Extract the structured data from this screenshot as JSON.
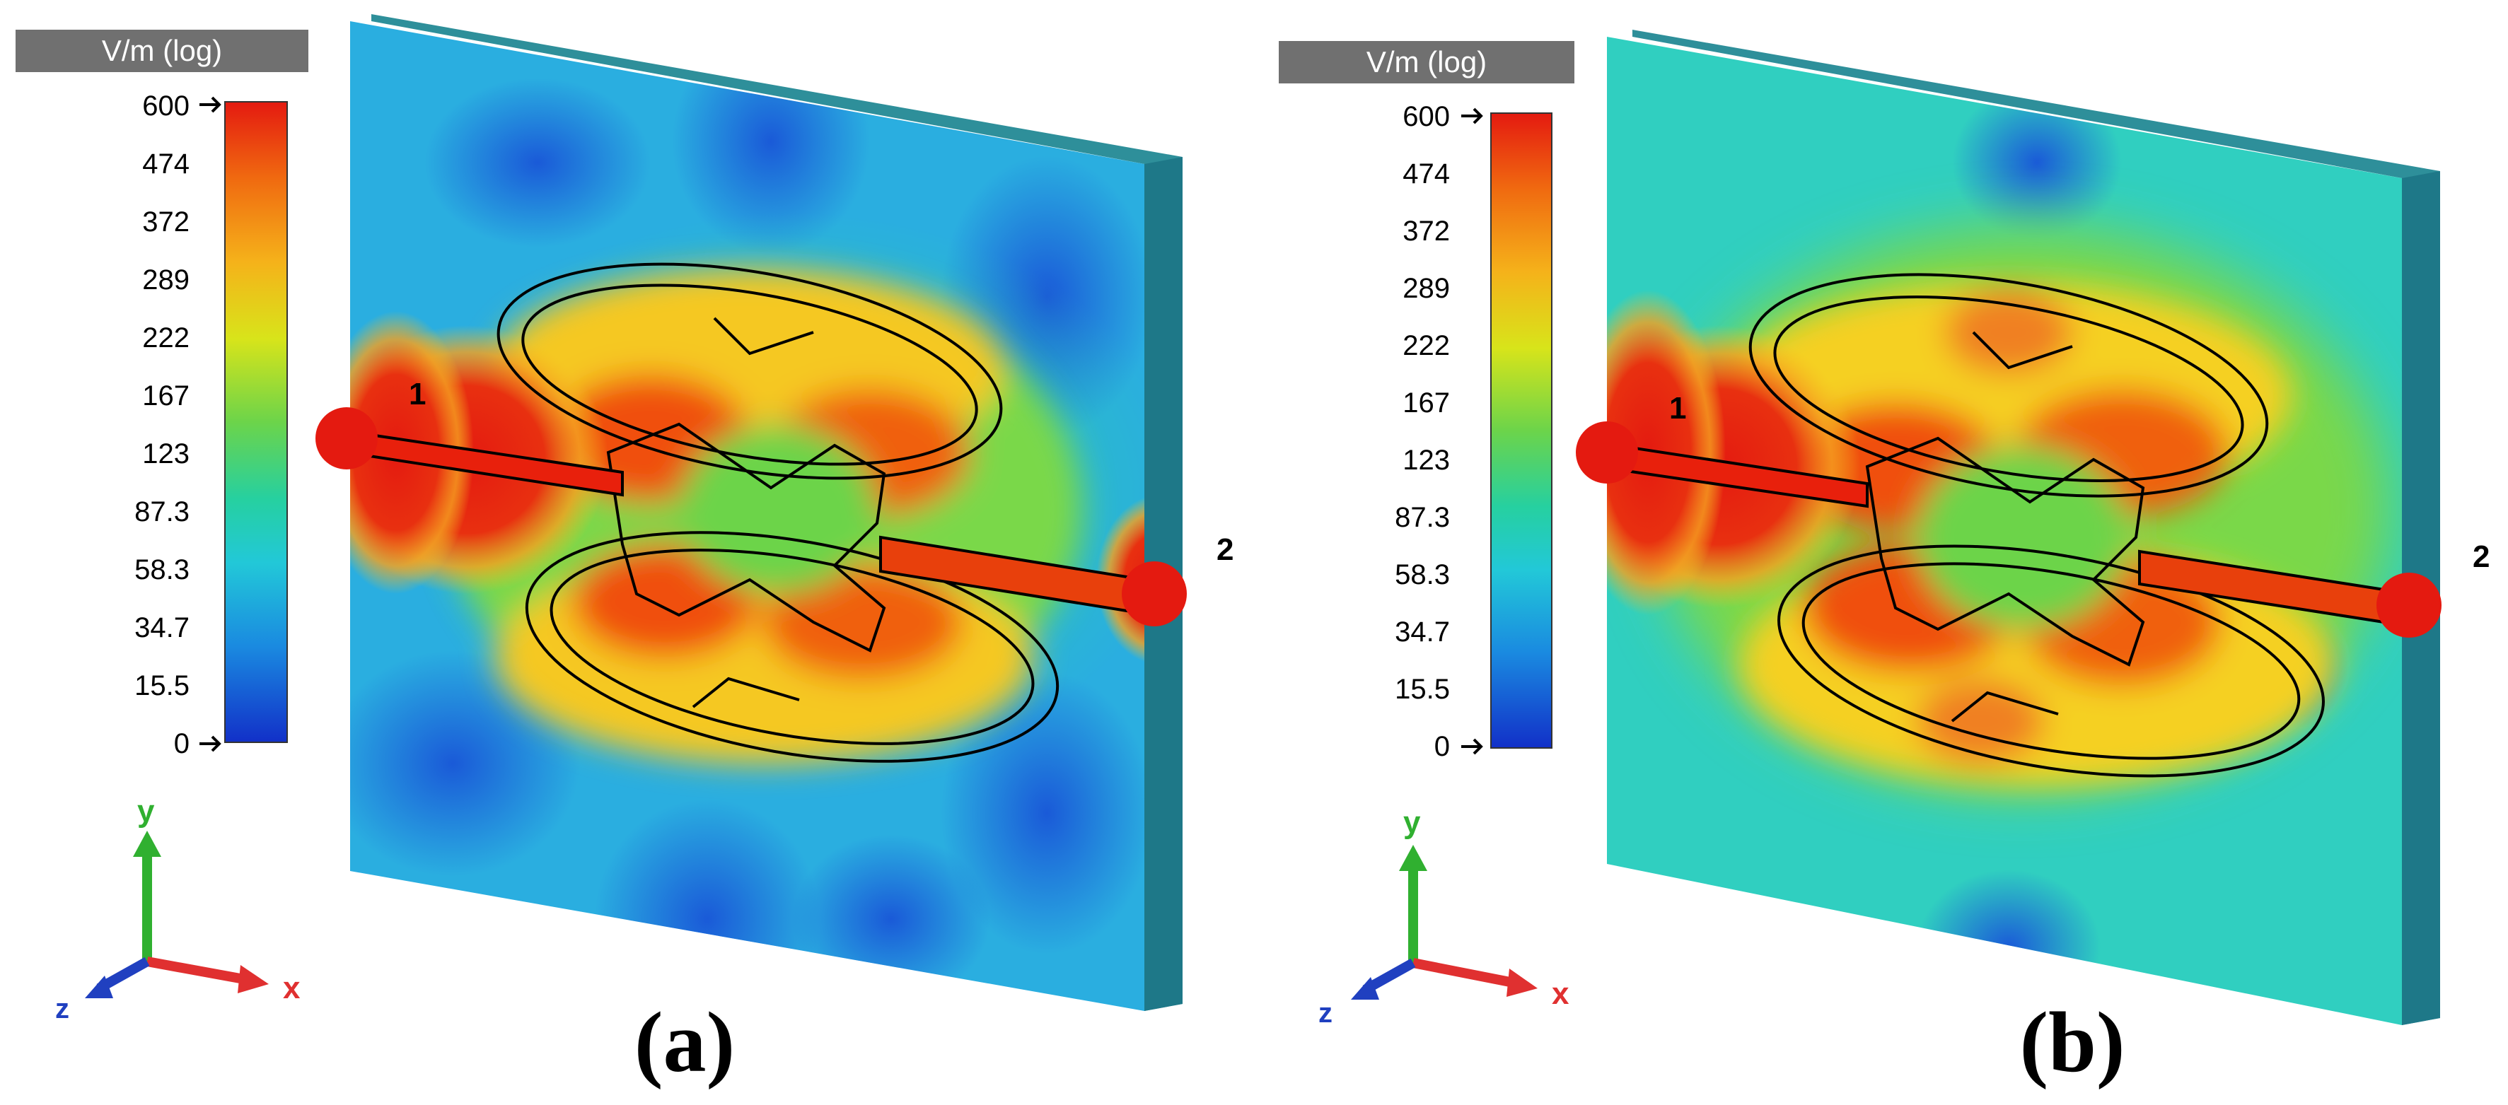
{
  "panels": [
    {
      "caption": "(a)",
      "legend": {
        "unit_title": "V/m (log)",
        "ticks": [
          "600",
          "474",
          "372",
          "289",
          "222",
          "167",
          "123",
          "87.3",
          "58.3",
          "34.7",
          "15.5",
          "0"
        ]
      },
      "ports": [
        "1",
        "2"
      ],
      "axes": {
        "x": "x",
        "y": "y",
        "z": "z"
      }
    },
    {
      "caption": "(b)",
      "legend": {
        "unit_title": "V/m (log)",
        "ticks": [
          "600",
          "474",
          "372",
          "289",
          "222",
          "167",
          "123",
          "87.3",
          "58.3",
          "34.7",
          "15.5",
          "0"
        ]
      },
      "ports": [
        "1",
        "2"
      ],
      "axes": {
        "x": "x",
        "y": "y",
        "z": "z"
      }
    }
  ],
  "colors": {
    "legend_title_bg": "#707070",
    "scale": [
      "#e41a10",
      "#f06a10",
      "#f5b21a",
      "#d8e41a",
      "#6cd44a",
      "#26d0a0",
      "#22c8d8",
      "#1a8ae0",
      "#1230c8"
    ],
    "axis_x": "#e03030",
    "axis_y": "#30b030",
    "axis_z": "#2040c0"
  }
}
